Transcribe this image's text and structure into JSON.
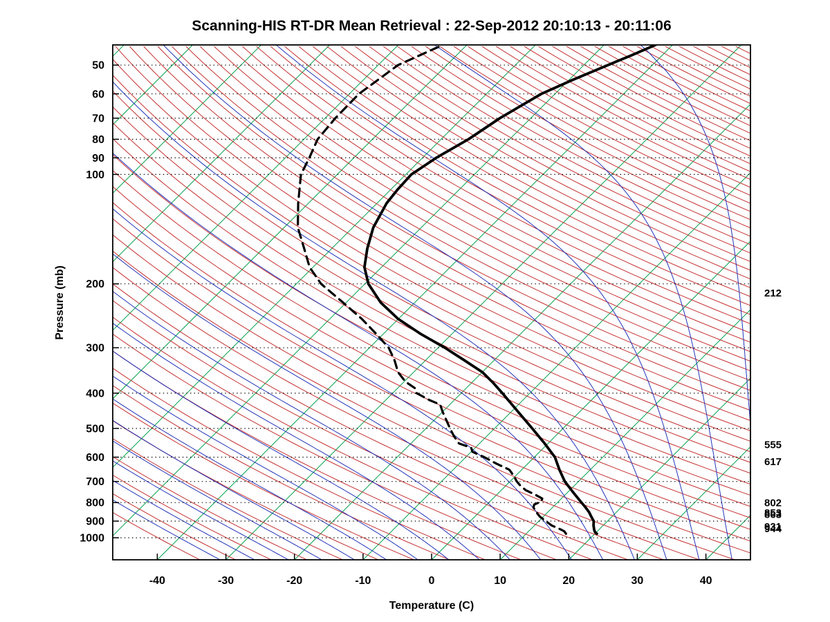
{
  "chart_data": {
    "type": "skewt_log_p_sounding",
    "title": "Scanning-HIS RT-DR Mean Retrieval : 22-Sep-2012 20:10:13 - 20:11:06",
    "xlabel": "Temperature (C)",
    "ylabel": "Pressure (mb)",
    "axes": {
      "pressure_top_mb": 44,
      "pressure_bottom_mb": 1150,
      "temp_min_c": -46.5,
      "temp_max_c": 46.5,
      "skew": 1,
      "pressure_ticks": [
        50,
        60,
        70,
        80,
        90,
        100,
        200,
        300,
        400,
        500,
        600,
        700,
        800,
        900,
        1000
      ],
      "temp_ticks": [
        -40,
        -30,
        -20,
        -10,
        0,
        10,
        20,
        30,
        40
      ],
      "grid": "dotted-horizontal"
    },
    "right_pressure_labels": [
      212,
      555,
      617,
      802,
      853,
      863,
      931,
      944
    ],
    "background_lines": {
      "isotherms_c": {
        "start": -120,
        "end": 40,
        "step": 10,
        "color": "#00a04a"
      },
      "dry_adiabats_theta_k": {
        "start": 230,
        "end": 620,
        "step": 5,
        "color": "#c53030"
      },
      "moist_adiabats_t0_c": {
        "start": -40,
        "end": 70,
        "step": 5,
        "color": "#2233b8"
      },
      "grid_color": "#000000"
    },
    "series": [
      {
        "name": "temperature",
        "line": "solid",
        "color": "#000000",
        "points_p_t": [
          [
            975,
            20.3
          ],
          [
            965,
            19.8
          ],
          [
            950,
            19.3
          ],
          [
            925,
            18.6
          ],
          [
            900,
            18.0
          ],
          [
            875,
            17.0
          ],
          [
            850,
            16.0
          ],
          [
            825,
            14.8
          ],
          [
            800,
            13.5
          ],
          [
            750,
            10.8
          ],
          [
            700,
            8.0
          ],
          [
            650,
            5.5
          ],
          [
            600,
            3.0
          ],
          [
            550,
            -0.5
          ],
          [
            500,
            -4.5
          ],
          [
            450,
            -9.0
          ],
          [
            400,
            -14.0
          ],
          [
            375,
            -16.8
          ],
          [
            350,
            -20.0
          ],
          [
            325,
            -24.3
          ],
          [
            300,
            -29.0
          ],
          [
            275,
            -34.5
          ],
          [
            250,
            -40.0
          ],
          [
            225,
            -45.0
          ],
          [
            200,
            -49.5
          ],
          [
            180,
            -52.5
          ],
          [
            160,
            -54.8
          ],
          [
            140,
            -57.0
          ],
          [
            120,
            -58.6
          ],
          [
            110,
            -59.0
          ],
          [
            100,
            -59.2
          ],
          [
            90,
            -58.0
          ],
          [
            80,
            -56.0
          ],
          [
            70,
            -54.5
          ],
          [
            60,
            -52.0
          ],
          [
            55,
            -49.5
          ],
          [
            50,
            -46.5
          ],
          [
            47,
            -44.5
          ],
          [
            44,
            -42.5
          ]
        ]
      },
      {
        "name": "dewpoint",
        "line": "dashed",
        "color": "#000000",
        "points_p_t": [
          [
            975,
            15.8
          ],
          [
            960,
            15.2
          ],
          [
            950,
            14.5
          ],
          [
            935,
            13.3
          ],
          [
            925,
            12.5
          ],
          [
            900,
            11.0
          ],
          [
            875,
            9.5
          ],
          [
            850,
            8.3
          ],
          [
            825,
            7.2
          ],
          [
            810,
            6.9
          ],
          [
            795,
            7.5
          ],
          [
            780,
            7.2
          ],
          [
            760,
            5.5
          ],
          [
            740,
            3.6
          ],
          [
            720,
            2.2
          ],
          [
            700,
            1.0
          ],
          [
            675,
            -0.3
          ],
          [
            650,
            -1.8
          ],
          [
            625,
            -4.6
          ],
          [
            600,
            -7.3
          ],
          [
            580,
            -9.8
          ],
          [
            565,
            -10.6
          ],
          [
            550,
            -13.0
          ],
          [
            525,
            -14.8
          ],
          [
            500,
            -16.5
          ],
          [
            475,
            -18.2
          ],
          [
            450,
            -20.0
          ],
          [
            430,
            -21.4
          ],
          [
            418,
            -23.6
          ],
          [
            400,
            -26.5
          ],
          [
            388,
            -27.4
          ],
          [
            372,
            -29.8
          ],
          [
            350,
            -32.3
          ],
          [
            325,
            -34.5
          ],
          [
            300,
            -37.2
          ],
          [
            275,
            -41.0
          ],
          [
            250,
            -45.3
          ],
          [
            225,
            -50.5
          ],
          [
            200,
            -56.4
          ],
          [
            180,
            -60.5
          ],
          [
            160,
            -64.0
          ],
          [
            140,
            -68.0
          ],
          [
            120,
            -71.5
          ],
          [
            100,
            -75.3
          ],
          [
            90,
            -76.5
          ],
          [
            80,
            -78.0
          ],
          [
            70,
            -78.5
          ],
          [
            60,
            -78.6
          ],
          [
            50,
            -77.1
          ],
          [
            44,
            -73.5
          ]
        ]
      }
    ]
  }
}
